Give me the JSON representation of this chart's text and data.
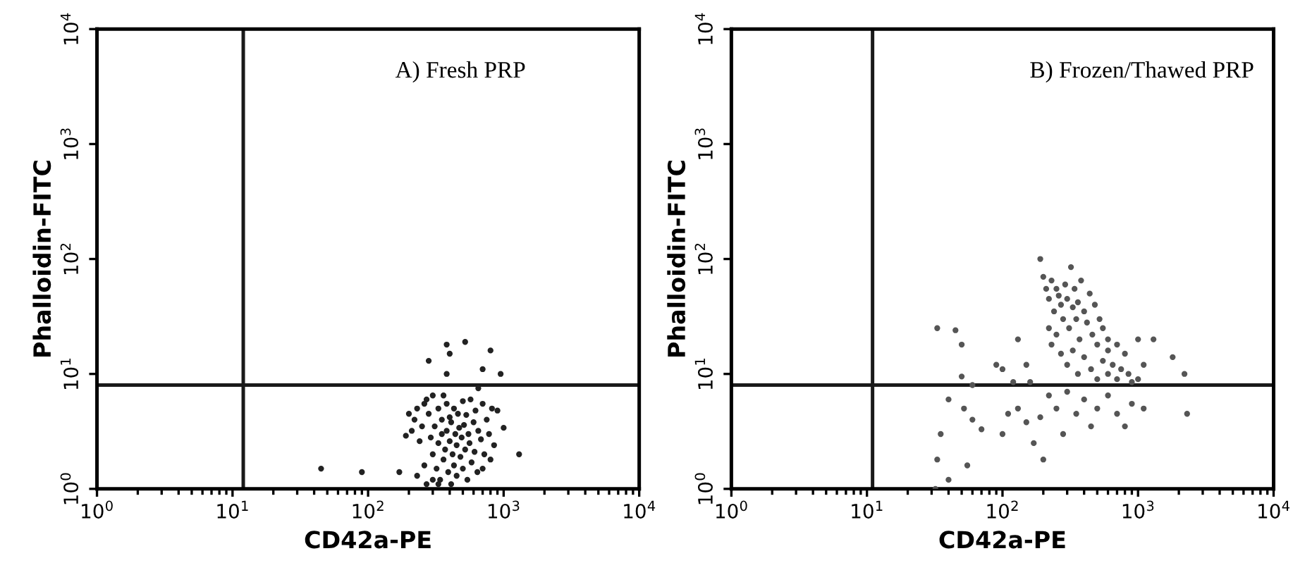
{
  "chart_data": [
    {
      "type": "scatter",
      "xlabel": "CD42a-PE",
      "ylabel": "Phalloidin-FITC",
      "annotations": [
        "A) Fresh PRP"
      ],
      "log": "xy",
      "grid": false,
      "marker": "circle",
      "xlim": [
        1,
        10000
      ],
      "ylim": [
        1,
        10000
      ],
      "xticks": [
        {
          "value": 1,
          "label": "10$^{0}$"
        },
        {
          "value": 10,
          "label": "10$^{1}$"
        },
        {
          "value": 100,
          "label": "10$^{2}$"
        },
        {
          "value": 1000,
          "label": "10$^{3}$"
        },
        {
          "value": 10000,
          "label": "10$^{4}$"
        },
        {
          "value": 2,
          "label": null
        },
        {
          "value": 3,
          "label": null
        },
        {
          "value": 4,
          "label": null
        },
        {
          "value": 5,
          "label": null
        },
        {
          "value": 6,
          "label": null
        },
        {
          "value": 7,
          "label": null
        },
        {
          "value": 8,
          "label": null
        },
        {
          "value": 9,
          "label": null
        },
        {
          "value": 20,
          "label": null
        },
        {
          "value": 30,
          "label": null
        },
        {
          "value": 40,
          "label": null
        },
        {
          "value": 50,
          "label": null
        },
        {
          "value": 60,
          "label": null
        },
        {
          "value": 70,
          "label": null
        },
        {
          "value": 80,
          "label": null
        },
        {
          "value": 90,
          "label": null
        },
        {
          "value": 200,
          "label": null
        },
        {
          "value": 300,
          "label": null
        },
        {
          "value": 400,
          "label": null
        },
        {
          "value": 500,
          "label": null
        },
        {
          "value": 600,
          "label": null
        },
        {
          "value": 700,
          "label": null
        },
        {
          "value": 800,
          "label": null
        },
        {
          "value": 900,
          "label": null
        },
        {
          "value": 2000,
          "label": null
        },
        {
          "value": 3000,
          "label": null
        },
        {
          "value": 4000,
          "label": null
        },
        {
          "value": 5000,
          "label": null
        },
        {
          "value": 6000,
          "label": null
        },
        {
          "value": 7000,
          "label": null
        },
        {
          "value": 8000,
          "label": null
        },
        {
          "value": 9000,
          "label": null
        }
      ],
      "yticks": [
        {
          "value": 1,
          "label": "10$^{0}$"
        },
        {
          "value": 10,
          "label": "10$^{1}$"
        },
        {
          "value": 100,
          "label": "10$^{2}$"
        },
        {
          "value": 1000,
          "label": "10$^{3}$"
        },
        {
          "value": 10000,
          "label": "10$^{4}$"
        }
      ],
      "ref_lines": [
        {
          "axis": "x",
          "value": 12,
          "color": "#1a1a1a"
        },
        {
          "axis": "y",
          "value": 8,
          "color": "#1a1a1a"
        }
      ],
      "series": [
        {
          "color": "#222222",
          "x": [
            200,
            210,
            220,
            230,
            250,
            260,
            270,
            280,
            290,
            300,
            300,
            310,
            320,
            330,
            330,
            340,
            350,
            350,
            360,
            360,
            370,
            380,
            380,
            390,
            400,
            400,
            410,
            410,
            420,
            430,
            430,
            440,
            450,
            450,
            460,
            470,
            480,
            490,
            500,
            500,
            510,
            520,
            530,
            540,
            550,
            560,
            570,
            580,
            600,
            610,
            620,
            640,
            650,
            680,
            700,
            700,
            720,
            750,
            780,
            800,
            820,
            850,
            900,
            1000,
            1300,
            270,
            300,
            330,
            260,
            240,
            230,
            190,
            45,
            90,
            170,
            280,
            380,
            380,
            400,
            520,
            700,
            800,
            950,
            650
          ],
          "values": [
            4.5,
            3.2,
            4,
            5,
            3.5,
            5.5,
            6,
            4.5,
            2.8,
            6.5,
            2,
            3.5,
            1.5,
            5,
            2.5,
            1.2,
            4,
            3,
            6.5,
            1.8,
            2.2,
            5.5,
            3.2,
            1.4,
            4.2,
            2.6,
            1.1,
            3.8,
            2,
            5,
            1.6,
            3,
            2.4,
            1.3,
            4.5,
            3.4,
            1.9,
            2.8,
            5.8,
            1.5,
            3.6,
            2.2,
            4.4,
            1.2,
            3,
            2.5,
            6,
            1.7,
            3.8,
            2.1,
            4.8,
            1.4,
            3.2,
            2.7,
            5.5,
            1.5,
            2,
            4,
            3,
            1.8,
            5,
            2.4,
            4.8,
            3.4,
            2,
            1.1,
            1.2,
            1.1,
            1.6,
            2.6,
            1.3,
            2.9,
            1.5,
            1.4,
            1.4,
            13,
            18,
            10,
            15,
            19,
            11,
            16,
            10,
            7.5
          ]
        }
      ]
    },
    {
      "type": "scatter",
      "xlabel": "CD42a-PE",
      "ylabel": "Phalloidin-FITC",
      "annotations": [
        "B) Frozen/Thawed PRP"
      ],
      "log": "xy",
      "grid": false,
      "marker": "circle",
      "xlim": [
        1,
        10000
      ],
      "ylim": [
        1,
        10000
      ],
      "xticks": [
        {
          "value": 1,
          "label": "10$^{0}$"
        },
        {
          "value": 10,
          "label": "10$^{1}$"
        },
        {
          "value": 100,
          "label": "10$^{2}$"
        },
        {
          "value": 1000,
          "label": "10$^{3}$"
        },
        {
          "value": 10000,
          "label": "10$^{4}$"
        },
        {
          "value": 2,
          "label": null
        },
        {
          "value": 3,
          "label": null
        },
        {
          "value": 4,
          "label": null
        },
        {
          "value": 5,
          "label": null
        },
        {
          "value": 6,
          "label": null
        },
        {
          "value": 7,
          "label": null
        },
        {
          "value": 8,
          "label": null
        },
        {
          "value": 9,
          "label": null
        },
        {
          "value": 20,
          "label": null
        },
        {
          "value": 30,
          "label": null
        },
        {
          "value": 40,
          "label": null
        },
        {
          "value": 50,
          "label": null
        },
        {
          "value": 60,
          "label": null
        },
        {
          "value": 70,
          "label": null
        },
        {
          "value": 80,
          "label": null
        },
        {
          "value": 90,
          "label": null
        },
        {
          "value": 200,
          "label": null
        },
        {
          "value": 300,
          "label": null
        },
        {
          "value": 400,
          "label": null
        },
        {
          "value": 500,
          "label": null
        },
        {
          "value": 600,
          "label": null
        },
        {
          "value": 700,
          "label": null
        },
        {
          "value": 800,
          "label": null
        },
        {
          "value": 900,
          "label": null
        },
        {
          "value": 2000,
          "label": null
        },
        {
          "value": 3000,
          "label": null
        },
        {
          "value": 4000,
          "label": null
        },
        {
          "value": 5000,
          "label": null
        },
        {
          "value": 6000,
          "label": null
        },
        {
          "value": 7000,
          "label": null
        },
        {
          "value": 8000,
          "label": null
        },
        {
          "value": 9000,
          "label": null
        }
      ],
      "yticks": [
        {
          "value": 1,
          "label": "10$^{0}$"
        },
        {
          "value": 10,
          "label": "10$^{1}$"
        },
        {
          "value": 100,
          "label": "10$^{2}$"
        },
        {
          "value": 1000,
          "label": "10$^{3}$"
        },
        {
          "value": 10000,
          "label": "10$^{4}$"
        }
      ],
      "ref_lines": [
        {
          "axis": "x",
          "value": 11,
          "color": "#1a1a1a"
        },
        {
          "axis": "y",
          "value": 8,
          "color": "#1a1a1a"
        }
      ],
      "series": [
        {
          "color": "#555555",
          "x": [
            190,
            200,
            210,
            220,
            230,
            240,
            250,
            260,
            270,
            280,
            290,
            300,
            310,
            320,
            330,
            340,
            350,
            360,
            370,
            380,
            400,
            420,
            440,
            460,
            480,
            500,
            520,
            550,
            600,
            250,
            230,
            220,
            270,
            300,
            330,
            360,
            400,
            450,
            500,
            550,
            600,
            650,
            700,
            750,
            800,
            850,
            900,
            1000,
            1100,
            1300,
            1800,
            2200,
            700,
            600,
            1000,
            33,
            45,
            50,
            35,
            33,
            40,
            50,
            52,
            60,
            55,
            70,
            100,
            110,
            130,
            150,
            170,
            190,
            200,
            220,
            250,
            280,
            300,
            350,
            400,
            450,
            500,
            600,
            700,
            800,
            900,
            1100,
            2300,
            130,
            150,
            100,
            90,
            120,
            60,
            160,
            32,
            40
          ],
          "values": [
            100,
            70,
            55,
            45,
            65,
            35,
            55,
            48,
            40,
            30,
            60,
            45,
            25,
            85,
            38,
            55,
            30,
            42,
            20,
            65,
            35,
            28,
            50,
            22,
            40,
            18,
            30,
            25,
            20,
            22,
            18,
            25,
            15,
            12,
            16,
            10,
            14,
            11,
            9,
            13,
            10,
            12,
            9,
            11,
            15,
            10,
            8.5,
            20,
            12,
            20,
            14,
            10,
            18,
            16,
            9,
            25,
            24,
            18,
            3,
            1.8,
            6,
            9.5,
            5,
            4,
            1.6,
            3.3,
            3,
            4.5,
            5,
            3.8,
            2.5,
            4.2,
            1.8,
            6.5,
            5,
            3,
            7,
            4.5,
            6,
            3.5,
            5,
            6.5,
            4.5,
            3.5,
            5.5,
            5,
            4.5,
            20,
            12,
            11,
            12,
            8.5,
            8,
            8.5,
            1.0,
            1.2
          ]
        }
      ]
    }
  ]
}
